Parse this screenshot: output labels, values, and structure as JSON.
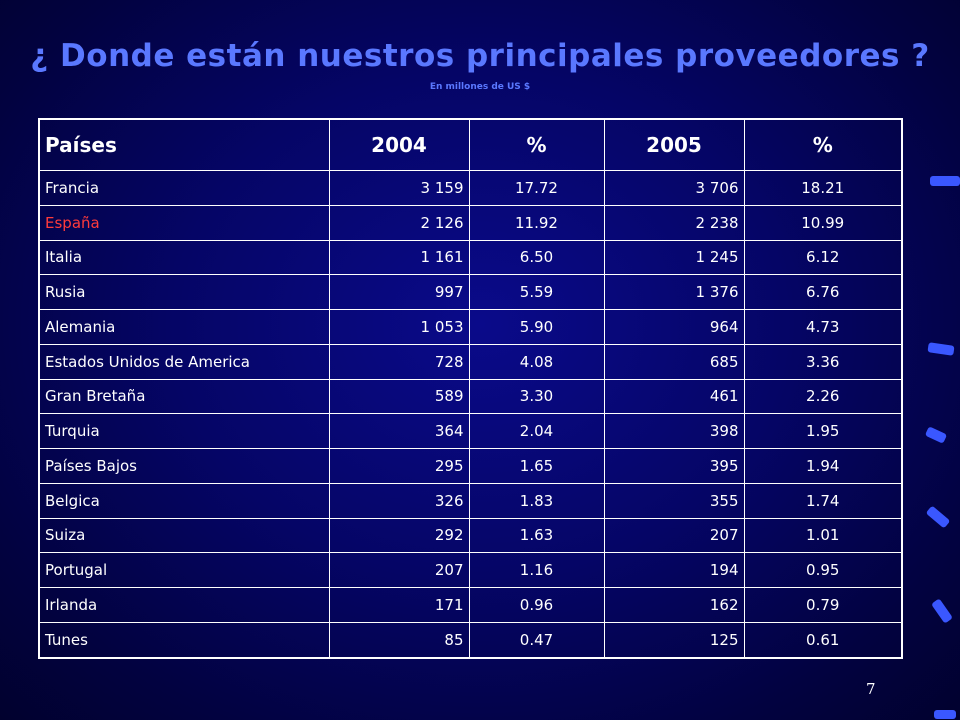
{
  "title": "¿ Donde están nuestros principales proveedores ?",
  "subtitle": "En millones de US $",
  "page_number": "7",
  "table": {
    "headers": {
      "country": "Países",
      "y2004": "2004",
      "pct2004": "%",
      "y2005": "2005",
      "pct2005": "%"
    },
    "rows": [
      {
        "country": "Francia",
        "v2004": "3 159",
        "p2004": "17.72",
        "v2005": "3 706",
        "p2005": "18.21"
      },
      {
        "country": "España",
        "v2004": "2 126",
        "p2004": "11.92",
        "v2005": "2 238",
        "p2005": "10.99"
      },
      {
        "country": "Italia",
        "v2004": "1 161",
        "p2004": "6.50",
        "v2005": "1 245",
        "p2005": "6.12"
      },
      {
        "country": "Rusia",
        "v2004": "997",
        "p2004": "5.59",
        "v2005": "1 376",
        "p2005": "6.76"
      },
      {
        "country": "Alemania",
        "v2004": "1 053",
        "p2004": "5.90",
        "v2005": "964",
        "p2005": "4.73"
      },
      {
        "country": "Estados Unidos de America",
        "v2004": "728",
        "p2004": "4.08",
        "v2005": "685",
        "p2005": "3.36"
      },
      {
        "country": "Gran Bretaña",
        "v2004": "589",
        "p2004": "3.30",
        "v2005": "461",
        "p2005": "2.26"
      },
      {
        "country": "Turquia",
        "v2004": "364",
        "p2004": "2.04",
        "v2005": "398",
        "p2005": "1.95"
      },
      {
        "country": "Países Bajos",
        "v2004": "295",
        "p2004": "1.65",
        "v2005": "395",
        "p2005": "1.94"
      },
      {
        "country": "Belgica",
        "v2004": "326",
        "p2004": "1.83",
        "v2005": "355",
        "p2005": "1.74"
      },
      {
        "country": "Suiza",
        "v2004": "292",
        "p2004": "1.63",
        "v2005": "207",
        "p2005": "1.01"
      },
      {
        "country": "Portugal",
        "v2004": "207",
        "p2004": "1.16",
        "v2005": "194",
        "p2005": "0.95"
      },
      {
        "country": "Irlanda",
        "v2004": "171",
        "p2004": "0.96",
        "v2005": "162",
        "p2005": "0.79"
      },
      {
        "country": "Tunes",
        "v2004": "85",
        "p2004": "0.47",
        "v2005": "125",
        "p2005": "0.61"
      }
    ]
  },
  "colors": {
    "background": "#050566",
    "title": "#5a78ff",
    "highlight_country": "#ff3b3b",
    "numbers": "#ffff33",
    "text": "#ffffff"
  }
}
